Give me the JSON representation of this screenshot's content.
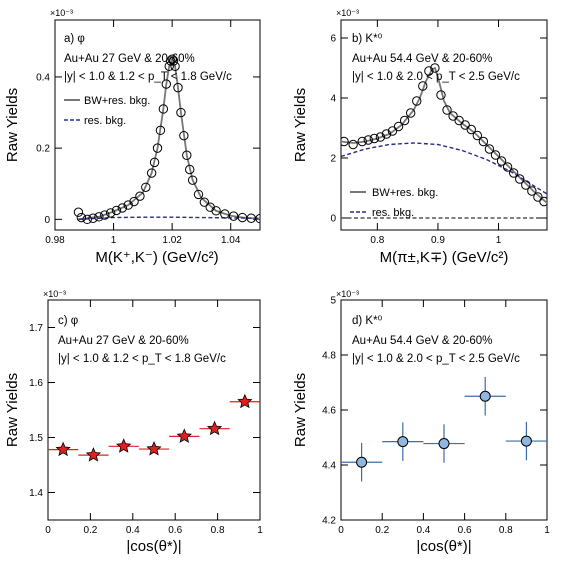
{
  "panels": [
    {
      "id": "a",
      "label": "a) φ",
      "lines": [
        "Au+Au 27 GeV & 20-60%",
        "|y| < 1.0 & 1.2 < p_T < 1.8 GeV/c"
      ],
      "legend": [
        "BW+res. bkg.",
        "res. bkg."
      ],
      "ylabel": "Raw Yields",
      "xlabel": "M(K⁺,K⁻) (GeV/c²)",
      "exponent": "×10⁻³"
    },
    {
      "id": "b",
      "label": "b) K*⁰",
      "lines": [
        "Au+Au 54.4 GeV & 20-60%",
        "|y| < 1.0 & 2.0 < p_T < 2.5 GeV/c"
      ],
      "legend": [
        "BW+res. bkg.",
        "res. bkg."
      ],
      "ylabel": "Raw Yields",
      "xlabel": "M(π±,K∓) (GeV/c²)",
      "exponent": "×10⁻³"
    },
    {
      "id": "c",
      "label": "c) φ",
      "lines": [
        "Au+Au 27 GeV & 20-60%",
        "|y| < 1.0 & 1.2 < p_T < 1.8 GeV/c"
      ],
      "legend": [],
      "ylabel": "Raw Yields",
      "xlabel": "|cos(θ*)|",
      "exponent": "×10⁻³"
    },
    {
      "id": "d",
      "label": "d) K*⁰",
      "lines": [
        "Au+Au 54.4 GeV & 20-60%",
        "|y| < 1.0 & 2.0 < p_T < 2.5 GeV/c"
      ],
      "legend": [],
      "ylabel": "Raw Yields",
      "xlabel": "|cos(θ*)|",
      "exponent": "×10⁻³"
    }
  ],
  "colors": {
    "fit": "#777777",
    "bkg": "#2a2a8c",
    "star_fill": "#e02020",
    "circle_fill": "#8fb8e0",
    "marker_edge": "#000000",
    "error_bar_c": "#e02020",
    "error_bar_d": "#3a6ea8"
  },
  "chart_data": [
    {
      "type": "scatter",
      "panel": "a",
      "xlim": [
        0.98,
        1.05
      ],
      "ylim": [
        -0.03,
        0.56
      ],
      "x_ticks": [
        0.98,
        1.0,
        1.02,
        1.04
      ],
      "x_ticklabels": [
        "0.98",
        "1",
        "1.02",
        "1.04"
      ],
      "y_ticks": [
        0,
        0.2,
        0.4
      ],
      "y_ticklabels": [
        "0",
        "0.2",
        "0.4"
      ],
      "series": [
        {
          "name": "data",
          "marker": "open-circle",
          "x": [
            0.988,
            0.989,
            0.991,
            0.993,
            0.995,
            0.997,
            0.999,
            1.001,
            1.003,
            1.005,
            1.007,
            1.009,
            1.011,
            1.013,
            1.014,
            1.015,
            1.016,
            1.017,
            1.018,
            1.019,
            1.0195,
            1.02,
            1.0205,
            1.021,
            1.022,
            1.023,
            1.024,
            1.025,
            1.026,
            1.027,
            1.029,
            1.031,
            1.033,
            1.035,
            1.038,
            1.041,
            1.044,
            1.047,
            1.05
          ],
          "y": [
            0.02,
            0.005,
            0.0,
            0.003,
            0.007,
            0.012,
            0.018,
            0.025,
            0.032,
            0.04,
            0.05,
            0.065,
            0.09,
            0.13,
            0.16,
            0.2,
            0.25,
            0.31,
            0.38,
            0.43,
            0.445,
            0.45,
            0.445,
            0.43,
            0.37,
            0.3,
            0.235,
            0.18,
            0.14,
            0.11,
            0.07,
            0.048,
            0.034,
            0.024,
            0.015,
            0.009,
            0.005,
            0.003,
            0.002
          ]
        },
        {
          "name": "BW+res. bkg.",
          "style": "solid-line",
          "x": [
            0.988,
            0.995,
            1.0,
            1.005,
            1.01,
            1.013,
            1.015,
            1.017,
            1.018,
            1.019,
            1.02,
            1.021,
            1.022,
            1.023,
            1.025,
            1.027,
            1.03,
            1.035,
            1.04,
            1.045,
            1.05
          ],
          "y": [
            0.0,
            0.007,
            0.022,
            0.04,
            0.075,
            0.13,
            0.2,
            0.31,
            0.38,
            0.43,
            0.45,
            0.43,
            0.37,
            0.3,
            0.18,
            0.11,
            0.06,
            0.024,
            0.01,
            0.004,
            0.002
          ]
        },
        {
          "name": "res. bkg.",
          "style": "dashed-line",
          "x": [
            0.988,
            1.0,
            1.01,
            1.02,
            1.03,
            1.04,
            1.05
          ],
          "y": [
            0.0,
            0.005,
            0.006,
            0.006,
            0.005,
            0.004,
            0.003
          ]
        }
      ]
    },
    {
      "type": "scatter",
      "panel": "b",
      "xlim": [
        0.74,
        1.08
      ],
      "ylim": [
        -0.4,
        6.6
      ],
      "x_ticks": [
        0.8,
        0.9,
        1.0
      ],
      "x_ticklabels": [
        "0.8",
        "0.9",
        "1"
      ],
      "y_ticks": [
        0,
        2,
        4,
        6
      ],
      "y_ticklabels": [
        "0",
        "2",
        "4",
        "6"
      ],
      "series": [
        {
          "name": "data",
          "marker": "open-circle",
          "x": [
            0.745,
            0.76,
            0.775,
            0.785,
            0.795,
            0.805,
            0.815,
            0.825,
            0.835,
            0.845,
            0.855,
            0.865,
            0.875,
            0.885,
            0.895,
            0.905,
            0.915,
            0.925,
            0.935,
            0.945,
            0.955,
            0.965,
            0.975,
            0.985,
            0.995,
            1.005,
            1.015,
            1.025,
            1.035,
            1.045,
            1.055,
            1.065,
            1.075
          ],
          "y": [
            2.55,
            2.45,
            2.55,
            2.6,
            2.65,
            2.7,
            2.8,
            2.9,
            3.05,
            3.25,
            3.5,
            3.9,
            4.4,
            4.9,
            5.0,
            4.1,
            3.6,
            3.4,
            3.25,
            3.1,
            2.95,
            2.75,
            2.55,
            2.3,
            2.1,
            1.9,
            1.7,
            1.5,
            1.3,
            1.1,
            0.9,
            0.7,
            0.55
          ]
        },
        {
          "name": "BW+res. bkg.",
          "style": "solid-line",
          "x": [
            0.74,
            0.76,
            0.78,
            0.8,
            0.82,
            0.84,
            0.86,
            0.87,
            0.88,
            0.89,
            0.895,
            0.9,
            0.91,
            0.92,
            0.94,
            0.96,
            0.98,
            1.0,
            1.02,
            1.04,
            1.06,
            1.08
          ],
          "y": [
            2.55,
            2.5,
            2.55,
            2.65,
            2.8,
            3.1,
            3.6,
            4.0,
            4.55,
            4.95,
            5.0,
            4.7,
            3.9,
            3.5,
            3.15,
            2.85,
            2.45,
            2.05,
            1.65,
            1.25,
            0.85,
            0.5
          ]
        },
        {
          "name": "res. bkg.",
          "style": "dashed-line",
          "x": [
            0.74,
            0.78,
            0.82,
            0.86,
            0.9,
            0.94,
            0.98,
            1.02,
            1.06,
            1.08
          ],
          "y": [
            2.05,
            2.3,
            2.45,
            2.5,
            2.45,
            2.25,
            1.95,
            1.55,
            1.05,
            0.8
          ]
        },
        {
          "name": "zero",
          "style": "dashed-line",
          "x": [
            0.74,
            1.08
          ],
          "y": [
            0.0,
            0.0
          ]
        }
      ]
    },
    {
      "type": "scatter",
      "panel": "c",
      "xlim": [
        0,
        1
      ],
      "ylim": [
        1.35,
        1.75
      ],
      "x_ticks": [
        0,
        0.2,
        0.4,
        0.6,
        0.8,
        1
      ],
      "x_ticklabels": [
        "0",
        "0.2",
        "0.4",
        "0.6",
        "0.8",
        "1"
      ],
      "y_ticks": [
        1.4,
        1.5,
        1.6,
        1.7
      ],
      "y_ticklabels": [
        "1.4",
        "1.5",
        "1.6",
        "1.7"
      ],
      "series": [
        {
          "name": "data",
          "marker": "star",
          "x": [
            0.0714,
            0.2143,
            0.3571,
            0.5,
            0.6429,
            0.7857,
            0.9286
          ],
          "xerr": [
            0.0714,
            0.0714,
            0.0714,
            0.0714,
            0.0714,
            0.0714,
            0.0714
          ],
          "y": [
            1.478,
            1.468,
            1.484,
            1.479,
            1.502,
            1.516,
            1.565
          ],
          "yerr": [
            0.004,
            0.004,
            0.004,
            0.004,
            0.004,
            0.004,
            0.004
          ]
        }
      ]
    },
    {
      "type": "scatter",
      "panel": "d",
      "xlim": [
        0,
        1
      ],
      "ylim": [
        4.2,
        5.0
      ],
      "x_ticks": [
        0,
        0.2,
        0.4,
        0.6,
        0.8,
        1
      ],
      "x_ticklabels": [
        "0",
        "0.2",
        "0.4",
        "0.6",
        "0.8",
        "1"
      ],
      "y_ticks": [
        4.2,
        4.4,
        4.6,
        4.8,
        5.0
      ],
      "y_ticklabels": [
        "4.2",
        "4.4",
        "4.6",
        "4.8",
        "5"
      ],
      "series": [
        {
          "name": "data",
          "marker": "circle",
          "x": [
            0.1,
            0.3,
            0.5,
            0.7,
            0.9
          ],
          "xerr": [
            0.1,
            0.1,
            0.1,
            0.1,
            0.1
          ],
          "y": [
            4.41,
            4.485,
            4.478,
            4.65,
            4.487
          ],
          "yerr": [
            0.07,
            0.07,
            0.07,
            0.07,
            0.07
          ]
        }
      ]
    }
  ]
}
